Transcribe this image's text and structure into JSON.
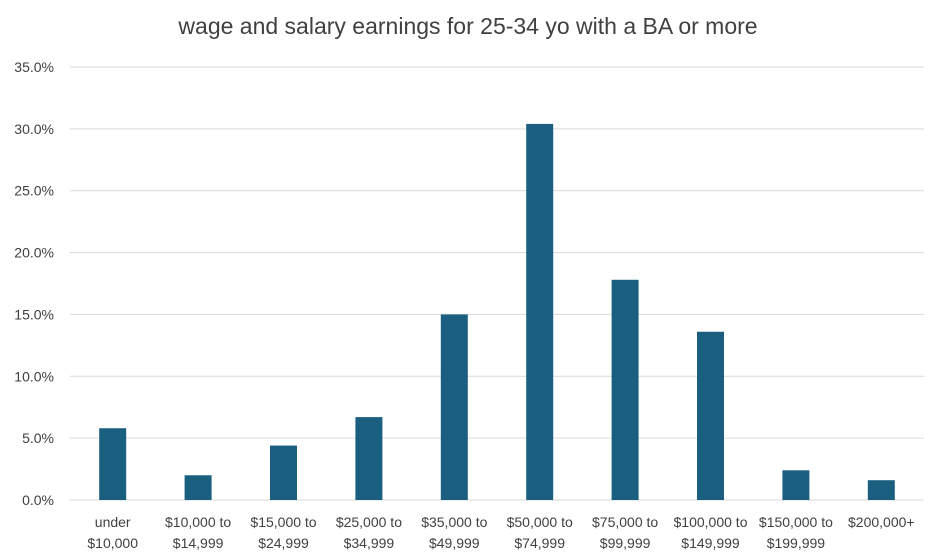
{
  "chart_data": {
    "type": "bar",
    "title": "wage and salary earnings for 25-34 yo with a BA or more",
    "xlabel": "",
    "ylabel": "",
    "categories": [
      [
        "under",
        "$10,000"
      ],
      [
        "$10,000 to",
        "$14,999"
      ],
      [
        "$15,000 to",
        "$24,999"
      ],
      [
        "$25,000 to",
        "$34,999"
      ],
      [
        "$35,000 to",
        "$49,999"
      ],
      [
        "$50,000 to",
        "$74,999"
      ],
      [
        "$75,000 to",
        "$99,999"
      ],
      [
        "$100,000 to",
        "$149,999"
      ],
      [
        "$150,000 to",
        "$199,999"
      ],
      [
        "$200,000+"
      ]
    ],
    "series": [
      {
        "values": [
          5.8,
          2.0,
          4.4,
          6.7,
          15.0,
          30.4,
          17.8,
          13.6,
          2.4,
          1.6
        ]
      }
    ],
    "ylim": [
      0,
      35
    ],
    "yticks": [
      "0.0%",
      "5.0%",
      "10.0%",
      "15.0%",
      "20.0%",
      "25.0%",
      "30.0%",
      "35.0%"
    ],
    "grid": true,
    "bar_color": "#1a5f80",
    "grid_color": "#d9d9d9"
  }
}
